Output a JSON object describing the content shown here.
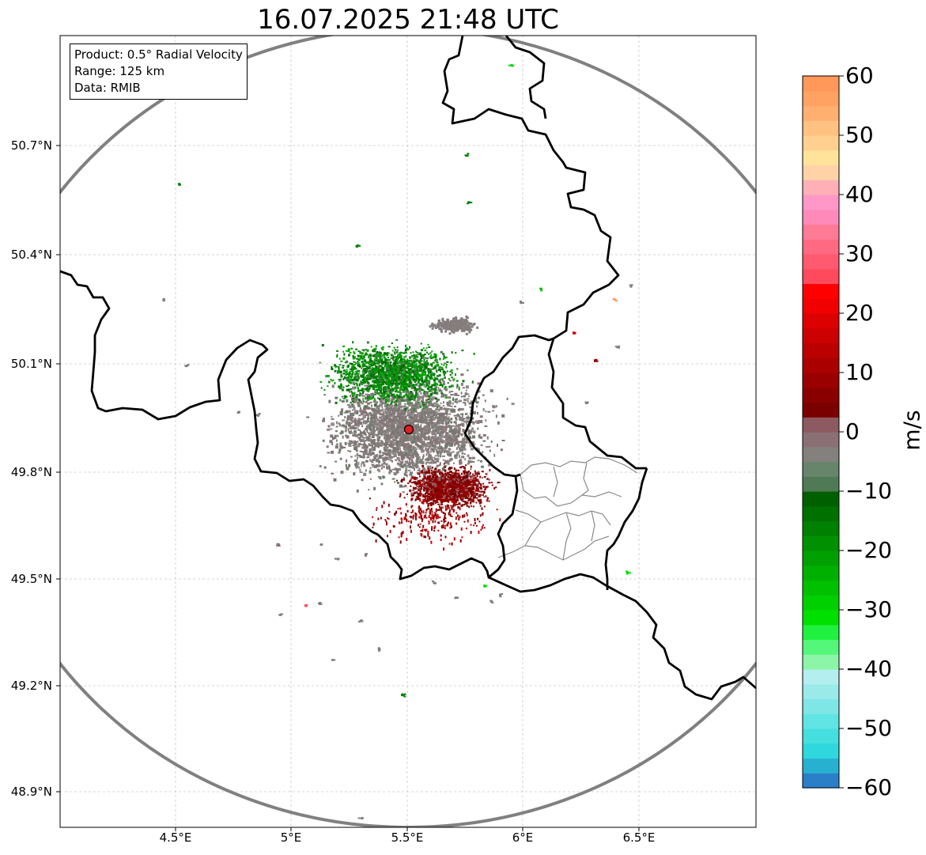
{
  "title": "16.07.2025 21:48 UTC",
  "info": {
    "product": "Product: 0.5° Radial Velocity",
    "range": "Range: 125 km",
    "data": "Data: RMIB"
  },
  "lat_ticks": [
    "50.7°N",
    "50.4°N",
    "50.1°N",
    "49.8°N",
    "49.5°N",
    "49.2°N",
    "48.9°N"
  ],
  "lon_ticks": [
    "4.5°E",
    "5°E",
    "5.5°E",
    "6°E",
    "6.5°E"
  ],
  "colorbar": {
    "label": "m/s",
    "ticks": [
      "60",
      "50",
      "40",
      "30",
      "20",
      "10",
      "0",
      "−10",
      "−20",
      "−30",
      "−40",
      "−50",
      "−60"
    ],
    "min": -60,
    "max": 60,
    "colors": [
      "#2a7fc8",
      "#27b0d0",
      "#2ed8dc",
      "#45dfdf",
      "#60e4e4",
      "#7fe6e6",
      "#9aeaea",
      "#b5eeee",
      "#8df5a8",
      "#55f77a",
      "#20f040",
      "#00e000",
      "#00d000",
      "#00c000",
      "#00b000",
      "#00a000",
      "#009000",
      "#008000",
      "#007000",
      "#006000",
      "#4f7a55",
      "#67856b",
      "#83807e",
      "#8a7075",
      "#8c5a60",
      "#7a0000",
      "#8a0000",
      "#9a0000",
      "#aa0000",
      "#ba0000",
      "#cc0000",
      "#dd0000",
      "#f00000",
      "#ff0000",
      "#ff4a5e",
      "#ff5a70",
      "#ff6a82",
      "#ff7a95",
      "#ff8aba",
      "#ff98c8",
      "#ffb0b6",
      "#ffd2a8",
      "#ffe39a",
      "#ffd090",
      "#ffc280",
      "#ffb070",
      "#ffa262",
      "#ff9858"
    ]
  },
  "radar": {
    "site_lon": 5.5,
    "site_lat": 49.92
  },
  "colors": {
    "approaching_green": "#007a00",
    "receding_red": "#8b0000",
    "near_zero_grey": "#857c7c",
    "range_ring": "#808080",
    "border": "#000000",
    "admin_border": "#888888",
    "radar_site": "#e02020"
  }
}
